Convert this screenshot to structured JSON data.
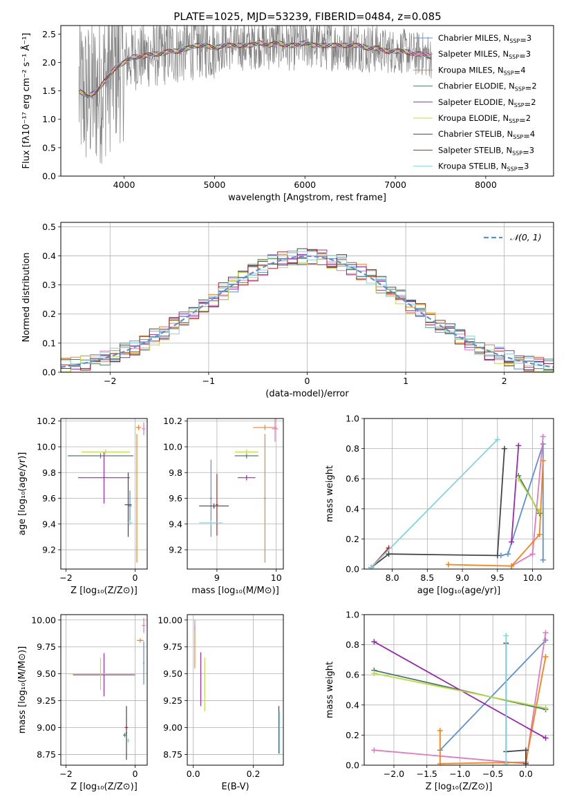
{
  "figure": {
    "title": "PLATE=1025, MJD=53239, FIBERID=0484, z=0.085"
  },
  "colors": {
    "spectrum": "#808080",
    "gaussian": "#5b8fd6",
    "grid": "#b0b0b0"
  },
  "models": [
    {
      "name": "Chabrier MILES",
      "nssp": "3",
      "color": "#5b8fd6"
    },
    {
      "name": "Salpeter MILES",
      "nssp": "3",
      "color": "#e377c2"
    },
    {
      "name": "Kroupa MILES",
      "nssp": "4",
      "color": "#ff7f0e"
    },
    {
      "name": "Chabrier ELODIE",
      "nssp": "2",
      "color": "#4a7a6a"
    },
    {
      "name": "Salpeter ELODIE",
      "nssp": "2",
      "color": "#9b27b0"
    },
    {
      "name": "Kroupa ELODIE",
      "nssp": "2",
      "color": "#bcdc3c"
    },
    {
      "name": "Chabrier STELIB",
      "nssp": "4",
      "color": "#444444"
    },
    {
      "name": "Salpeter STELIB",
      "nssp": "3",
      "color": "#b22222"
    },
    {
      "name": "Kroupa STELIB",
      "nssp": "3",
      "color": "#7fd4e0"
    }
  ],
  "chart_data": [
    {
      "id": "spectrum",
      "type": "line",
      "xlabel": "wavelength [Angstrom, rest frame]",
      "ylabel": "Flux [fλ10⁻¹⁷ erg cm⁻² s⁻¹ Å⁻¹]",
      "xlim": [
        3300,
        8750
      ],
      "ylim": [
        0,
        2.65
      ],
      "xticks": [
        4000,
        5000,
        6000,
        7000,
        8000
      ],
      "yticks": [
        0.0,
        0.5,
        1.0,
        1.5,
        2.0,
        2.5
      ],
      "ytick_labels": [
        "0.0",
        "0.5",
        "1.0",
        "1.5",
        "2.0",
        "2.5"
      ],
      "legend_position": "right",
      "continuum": {
        "x": [
          3500,
          3600,
          3700,
          3800,
          3900,
          4000,
          4100,
          4200,
          4300,
          4400,
          4500,
          4600,
          4700,
          4800,
          4900,
          5000,
          5100,
          5200,
          5300,
          5400,
          5500,
          5600,
          5700,
          5800,
          5900,
          6000,
          6100,
          6200,
          6300,
          6400,
          6500,
          6600,
          6700,
          6800,
          6900,
          7000,
          7100,
          7200,
          7300,
          7400
        ],
        "y": [
          1.5,
          1.4,
          1.5,
          1.7,
          1.9,
          2.0,
          2.1,
          2.1,
          2.15,
          2.15,
          2.2,
          2.2,
          2.25,
          2.3,
          2.3,
          2.25,
          2.3,
          2.3,
          2.3,
          2.3,
          2.35,
          2.3,
          2.35,
          2.3,
          2.3,
          2.35,
          2.3,
          2.3,
          2.3,
          2.3,
          2.3,
          2.3,
          2.25,
          2.25,
          2.2,
          2.2,
          2.2,
          2.15,
          2.15,
          2.1
        ]
      }
    },
    {
      "id": "residuals",
      "type": "line",
      "xlabel": "(data-model)/error",
      "ylabel": "Normed distribution",
      "xlim": [
        -2.5,
        2.5
      ],
      "ylim": [
        0,
        0.515
      ],
      "xticks": [
        -2,
        -1,
        0,
        1,
        2
      ],
      "xtick_labels": [
        "−2",
        "−1",
        "0",
        "1",
        "2"
      ],
      "yticks": [
        0.0,
        0.1,
        0.2,
        0.3,
        0.4,
        0.5
      ],
      "ytick_labels": [
        "0.0",
        "0.1",
        "0.2",
        "0.3",
        "0.4",
        "0.5"
      ],
      "grid": true,
      "legend": "𝒩(0, 1)",
      "gaussian": {
        "mu": 0,
        "sigma": 1
      }
    },
    {
      "id": "age-vs-Z",
      "type": "scatter",
      "xlabel": "Z [log₁₀(Z/Z⊙)]",
      "ylabel": "age  [log₁₀(age/yr)]",
      "xlim": [
        -2.15,
        0.35
      ],
      "ylim": [
        9.05,
        10.22
      ],
      "xticks": [
        -2,
        0
      ],
      "xtick_labels": [
        "−2",
        "0"
      ],
      "yticks": [
        9.2,
        9.4,
        9.6,
        9.8,
        10.0,
        10.2
      ],
      "ytick_labels": [
        "9.2",
        "9.4",
        "9.6",
        "9.8",
        "10.0",
        "10.2"
      ],
      "grid": true,
      "points": [
        {
          "m": 0,
          "x": -0.15,
          "y": 9.54,
          "xerr": 0.05,
          "yerr": 0.12
        },
        {
          "m": 1,
          "x": 0.25,
          "y": 10.14,
          "xerr": 0.05,
          "yerr": 0.05
        },
        {
          "m": 2,
          "x": 0.1,
          "y": 10.15,
          "xerr": 0.08,
          "yerr": 0.02
        },
        {
          "m": 2,
          "x": 0.05,
          "y": 9.6,
          "xerr": 0.02,
          "yerr": 0.5
        },
        {
          "m": 3,
          "x": -1.0,
          "y": 9.93,
          "xerr": 0.95,
          "yerr": 0.02
        },
        {
          "m": 4,
          "x": -0.9,
          "y": 9.76,
          "xerr": 0.75,
          "yerr": 0.2
        },
        {
          "m": 5,
          "x": -0.85,
          "y": 9.96,
          "xerr": 0.7,
          "yerr": 0.02
        },
        {
          "m": 6,
          "x": -0.2,
          "y": 9.55,
          "xerr": 0.1,
          "yerr": 0.25
        },
        {
          "m": 8,
          "x": -0.15,
          "y": 9.41,
          "xerr": 0.07,
          "yerr": 0.02
        }
      ]
    },
    {
      "id": "age-vs-mass",
      "type": "scatter",
      "xlabel": "mass [log₁₀(M/M⊙)]",
      "ylabel": "",
      "xlim": [
        8.5,
        10.12
      ],
      "ylim": [
        9.05,
        10.22
      ],
      "xticks": [
        9,
        10
      ],
      "xtick_labels": [
        "9",
        "10"
      ],
      "yticks": [
        9.2,
        9.4,
        9.6,
        9.8,
        10.0,
        10.2
      ],
      "ytick_labels": [
        "9.2",
        "9.4",
        "9.6",
        "9.8",
        "10.0",
        "10.2"
      ],
      "grid": true,
      "points": [
        {
          "m": 0,
          "x": 8.9,
          "y": 9.6,
          "xerr": 0.02,
          "yerr": 0.3
        },
        {
          "m": 1,
          "x": 9.98,
          "y": 10.14,
          "xerr": 0.05,
          "yerr": 0.1
        },
        {
          "m": 2,
          "x": 9.81,
          "y": 10.15,
          "xerr": 0.2,
          "yerr": 0.02
        },
        {
          "m": 2,
          "x": 9.81,
          "y": 9.6,
          "xerr": 0.02,
          "yerr": 0.5
        },
        {
          "m": 3,
          "x": 9.5,
          "y": 9.93,
          "xerr": 0.2,
          "yerr": 0.02
        },
        {
          "m": 4,
          "x": 9.5,
          "y": 9.76,
          "xerr": 0.15,
          "yerr": 0.02
        },
        {
          "m": 5,
          "x": 9.5,
          "y": 9.96,
          "xerr": 0.2,
          "yerr": 0.02
        },
        {
          "m": 6,
          "x": 8.95,
          "y": 9.54,
          "xerr": 0.25,
          "yerr": 0.02
        },
        {
          "m": 7,
          "x": 9.0,
          "y": 9.55,
          "xerr": 0.02,
          "yerr": 0.24
        },
        {
          "m": 8,
          "x": 8.9,
          "y": 9.41,
          "xerr": 0.2,
          "yerr": 0.02
        }
      ]
    },
    {
      "id": "weight-vs-age",
      "type": "line",
      "xlabel": "age  [log₁₀(age/yr)]",
      "ylabel": "mass weight",
      "xlim": [
        7.6,
        10.3
      ],
      "ylim": [
        0.0,
        1.0
      ],
      "xticks": [
        8.0,
        8.5,
        9.0,
        9.5,
        10.0
      ],
      "xtick_labels": [
        "8.0",
        "8.5",
        "9.0",
        "9.5",
        "10.0"
      ],
      "yticks": [
        0.0,
        0.2,
        0.4,
        0.6,
        0.8,
        1.0
      ],
      "ytick_labels": [
        "0.0",
        "0.2",
        "0.4",
        "0.6",
        "0.8",
        "1.0"
      ],
      "grid": true,
      "series": [
        {
          "m": 0,
          "x": [
            9.55,
            9.65,
            10.15,
            10.15
          ],
          "y": [
            0.09,
            0.1,
            0.83,
            0.06
          ]
        },
        {
          "m": 1,
          "x": [
            9.7,
            10.0,
            10.15
          ],
          "y": [
            0.02,
            0.1,
            0.88
          ]
        },
        {
          "m": 2,
          "x": [
            8.8,
            9.7,
            10.1,
            10.15
          ],
          "y": [
            0.03,
            0.02,
            0.23,
            0.72
          ]
        },
        {
          "m": 3,
          "x": [
            9.8,
            10.1
          ],
          "y": [
            0.62,
            0.37
          ]
        },
        {
          "m": 4,
          "x": [
            9.7,
            9.8
          ],
          "y": [
            0.18,
            0.82
          ]
        },
        {
          "m": 5,
          "x": [
            9.8,
            10.1
          ],
          "y": [
            0.6,
            0.38
          ]
        },
        {
          "m": 6,
          "x": [
            7.7,
            7.95,
            9.5,
            9.6
          ],
          "y": [
            0.01,
            0.1,
            0.09,
            0.8
          ]
        },
        {
          "m": 7,
          "x": [
            7.7,
            7.95
          ],
          "y": [
            0.01,
            0.14
          ]
        },
        {
          "m": 8,
          "x": [
            7.7,
            9.5
          ],
          "y": [
            0.01,
            0.86
          ]
        }
      ]
    },
    {
      "id": "mass-vs-Z",
      "type": "scatter",
      "xlabel": "Z [log₁₀(Z/Z⊙)]",
      "ylabel": "mass [log₁₀(M/M⊙)]",
      "xlim": [
        -2.15,
        0.35
      ],
      "ylim": [
        8.65,
        10.05
      ],
      "xticks": [
        -2,
        0
      ],
      "xtick_labels": [
        "−2",
        "0"
      ],
      "yticks": [
        8.75,
        9.0,
        9.25,
        9.5,
        9.75,
        10.0
      ],
      "ytick_labels": [
        "8.75",
        "9.00",
        "9.25",
        "9.50",
        "9.75",
        "10.00"
      ],
      "grid": true,
      "points": [
        {
          "m": 0,
          "x": 0.25,
          "y": 9.6,
          "xerr": 0.02,
          "yerr": 0.2
        },
        {
          "m": 1,
          "x": 0.25,
          "y": 9.95,
          "xerr": 0.05,
          "yerr": 0.07
        },
        {
          "m": 2,
          "x": 0.15,
          "y": 9.81,
          "xerr": 0.1,
          "yerr": 0.02
        },
        {
          "m": 3,
          "x": -0.3,
          "y": 8.93,
          "xerr": 0.05,
          "yerr": 0.02
        },
        {
          "m": 4,
          "x": -0.9,
          "y": 9.49,
          "xerr": 0.9,
          "yerr": 0.2
        },
        {
          "m": 5,
          "x": -1.0,
          "y": 9.5,
          "xerr": 0.95,
          "yerr": 0.15
        },
        {
          "m": 6,
          "x": -0.25,
          "y": 8.95,
          "xerr": 0.02,
          "yerr": 0.25
        },
        {
          "m": 7,
          "x": -0.25,
          "y": 9.0,
          "xerr": 0.05,
          "yerr": 0.02
        },
        {
          "m": 8,
          "x": -0.2,
          "y": 8.88,
          "xerr": 0.03,
          "yerr": 0.02
        }
      ]
    },
    {
      "id": "mass-vs-ebv",
      "type": "scatter",
      "xlabel": "E(B-V)",
      "ylabel": "",
      "xlim": [
        -0.02,
        0.3
      ],
      "ylim": [
        8.65,
        10.05
      ],
      "xticks": [
        0.0,
        0.2
      ],
      "xtick_labels": [
        "0.0",
        "0.2"
      ],
      "yticks": [
        8.75,
        9.0,
        9.25,
        9.5,
        9.75,
        10.0
      ],
      "ytick_labels": [
        "8.75",
        "9.00",
        "9.25",
        "9.50",
        "9.75",
        "10.00"
      ],
      "grid": true,
      "points": [
        {
          "m": 2,
          "x": 0.005,
          "y": 9.75,
          "xerr": 0,
          "yerr": 0.2
        },
        {
          "m": 1,
          "x": 0.005,
          "y": 9.95,
          "xerr": 0,
          "yerr": 0.05
        },
        {
          "m": 4,
          "x": 0.025,
          "y": 9.45,
          "xerr": 0,
          "yerr": 0.25
        },
        {
          "m": 5,
          "x": 0.038,
          "y": 9.4,
          "xerr": 0,
          "yerr": 0.25
        },
        {
          "m": 6,
          "x": 0.285,
          "y": 8.98,
          "xerr": 0,
          "yerr": 0.22
        },
        {
          "m": 8,
          "x": 0.287,
          "y": 8.95,
          "xerr": 0,
          "yerr": 0.2
        }
      ]
    },
    {
      "id": "weight-vs-Z",
      "type": "line",
      "xlabel": "Z [log₁₀(Z/Z⊙)]",
      "ylabel": "mass weight",
      "xlim": [
        -2.45,
        0.42
      ],
      "ylim": [
        0.0,
        1.0
      ],
      "xticks": [
        -2.0,
        -1.5,
        -1.0,
        -0.5,
        0.0
      ],
      "xtick_labels": [
        "−2.0",
        "−1.5",
        "−1.0",
        "−0.5",
        "0.0"
      ],
      "yticks": [
        0.0,
        0.2,
        0.4,
        0.6,
        0.8,
        1.0
      ],
      "ytick_labels": [
        "0.0",
        "0.2",
        "0.4",
        "0.6",
        "0.8",
        "1.0"
      ],
      "grid": true,
      "series": [
        {
          "m": 0,
          "x": [
            -1.3,
            0.3
          ],
          "y": [
            0.1,
            0.83
          ]
        },
        {
          "m": 1,
          "x": [
            -2.3,
            0.0,
            0.3
          ],
          "y": [
            0.1,
            0.01,
            0.88
          ]
        },
        {
          "m": 2,
          "x": [
            -1.3,
            -1.3,
            0.0,
            0.3
          ],
          "y": [
            0.23,
            0.01,
            0.02,
            0.72
          ]
        },
        {
          "m": 3,
          "x": [
            -2.3,
            0.3
          ],
          "y": [
            0.63,
            0.37
          ]
        },
        {
          "m": 4,
          "x": [
            -2.3,
            0.3
          ],
          "y": [
            0.82,
            0.18
          ]
        },
        {
          "m": 5,
          "x": [
            -2.3,
            0.3
          ],
          "y": [
            0.61,
            0.38
          ]
        },
        {
          "m": 6,
          "x": [
            -0.3,
            -0.3,
            0.0,
            0.0
          ],
          "y": [
            0.81,
            0.09,
            0.1,
            0.01
          ]
        },
        {
          "m": 8,
          "x": [
            -0.3,
            -0.3
          ],
          "y": [
            0.86,
            0.01
          ]
        }
      ]
    }
  ]
}
